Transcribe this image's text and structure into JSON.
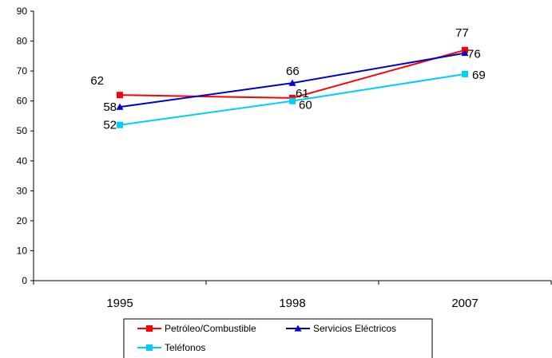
{
  "chart_data": {
    "type": "line",
    "categories": [
      "1995",
      "1998",
      "2007"
    ],
    "series": [
      {
        "name": "Petróleo/Combustible",
        "values": [
          62,
          61,
          77
        ],
        "color": "#ff0000",
        "marker": "square"
      },
      {
        "name": "Servicios Eléctricos",
        "values": [
          58,
          66,
          76
        ],
        "color": "#0000cc",
        "marker": "triangle"
      },
      {
        "name": "Teléfonos",
        "values": [
          52,
          60,
          69
        ],
        "color": "#00ccff",
        "marker": "square"
      }
    ],
    "ylim": [
      0,
      90
    ],
    "yticks": [
      "0",
      "10",
      "20",
      "30",
      "40",
      "50",
      "60",
      "70",
      "80",
      "90"
    ],
    "grid": false,
    "legend_position": "bottom",
    "data_labels": [
      {
        "series": 0,
        "index": 0,
        "text": "62"
      },
      {
        "series": 0,
        "index": 1,
        "text": "61"
      },
      {
        "series": 0,
        "index": 2,
        "text": "77"
      },
      {
        "series": 1,
        "index": 0,
        "text": "58"
      },
      {
        "series": 1,
        "index": 1,
        "text": "66"
      },
      {
        "series": 1,
        "index": 2,
        "text": "76"
      },
      {
        "series": 2,
        "index": 0,
        "text": "52"
      },
      {
        "series": 2,
        "index": 1,
        "text": "60"
      },
      {
        "series": 2,
        "index": 2,
        "text": "69"
      }
    ]
  }
}
